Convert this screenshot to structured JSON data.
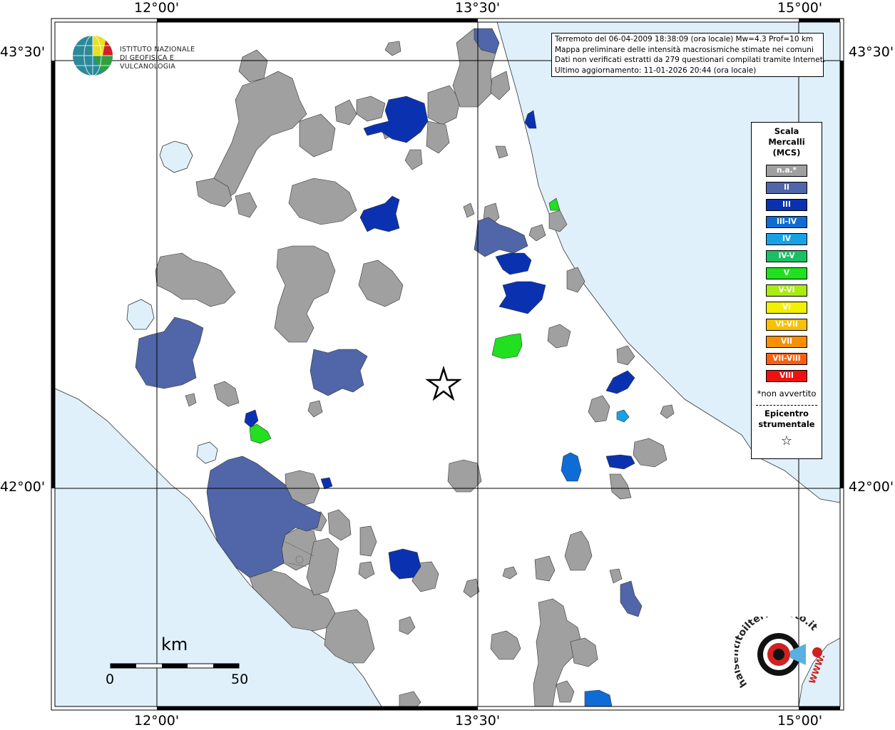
{
  "frame": {
    "top_labels": [
      "12°00'",
      "13°30'",
      "15°00'"
    ],
    "bottom_labels": [
      "12°00'",
      "13°30'",
      "15°00'"
    ],
    "left_labels": [
      "43°30'",
      "42°00'"
    ],
    "right_labels": [
      "43°30'",
      "42°00'"
    ]
  },
  "info": {
    "line1": "Terremoto del 06-04-2009 18:38:09 (ora locale) Mw=4.3 Prof=10 km",
    "line2": "Mappa preliminare delle intensità macrosismiche stimate nei comuni",
    "line3": "Dati non verificati estratti da 279 questionari compilati tramite Internet.",
    "line4": "Ultimo aggiornamento: 11-01-2026 20:44 (ora locale)"
  },
  "logo": {
    "line1": "ISTITUTO NAZIONALE",
    "line2": "DI GEOFISICA E VULCANOLOGIA"
  },
  "legend": {
    "title1": "Scala",
    "title2": "Mercalli",
    "title3": "(MCS)",
    "items": [
      {
        "label": "n.a.*",
        "color": "#a0a0a0"
      },
      {
        "label": "II",
        "color": "#5066a8"
      },
      {
        "label": "III",
        "color": "#0a32b0"
      },
      {
        "label": "III-IV",
        "color": "#0f6cd6"
      },
      {
        "label": "IV",
        "color": "#18a2e6"
      },
      {
        "label": "IV-V",
        "color": "#18c060"
      },
      {
        "label": "V",
        "color": "#20e020"
      },
      {
        "label": "V-VI",
        "color": "#a8ec10"
      },
      {
        "label": "VI",
        "color": "#f0f000"
      },
      {
        "label": "VI-VII",
        "color": "#f8c000"
      },
      {
        "label": "VII",
        "color": "#f89000"
      },
      {
        "label": "VII-VIII",
        "color": "#f86010"
      },
      {
        "label": "VIII",
        "color": "#f01010"
      }
    ],
    "note": "*non avvertito",
    "epi1": "Epicentro",
    "epi2": "strumentale",
    "epi_symbol": "☆"
  },
  "scalebar": {
    "unit": "km",
    "min": "0",
    "max": "50"
  },
  "badge": {
    "text": "haisentitoilterremoto.it",
    "url": "WWW."
  },
  "colors": {
    "sea": "#dff0fa",
    "land": "#ffffff",
    "grid": "#000000"
  }
}
